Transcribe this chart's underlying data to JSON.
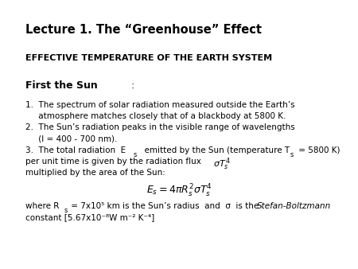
{
  "title": "Lecture 1. The “Greenhouse” Effect",
  "subtitle": "EFFECTIVE TEMPERATURE OF THE EARTH SYSTEM",
  "bg_color": "#ffffff",
  "text_color": "#000000",
  "title_fontsize": 10.5,
  "subtitle_fontsize": 8.0,
  "section_fontsize": 9.0,
  "body_fontsize": 7.5
}
